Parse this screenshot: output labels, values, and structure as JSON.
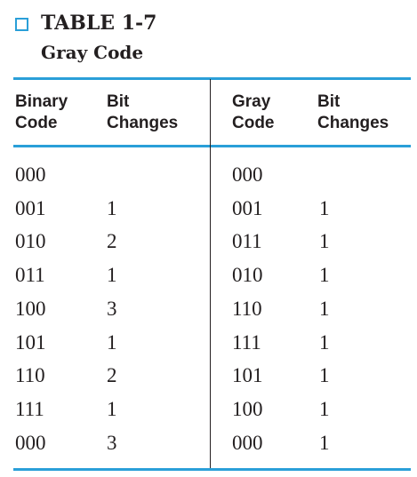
{
  "table": {
    "title": "TABLE 1-7",
    "subtitle": "Gray Code",
    "headers": [
      [
        "Binary",
        "Code"
      ],
      [
        "Bit",
        "Changes"
      ],
      [
        "Gray",
        "Code"
      ],
      [
        "Bit",
        "Changes"
      ]
    ],
    "rows": [
      [
        "000",
        "",
        "000",
        ""
      ],
      [
        "001",
        "1",
        "001",
        "1"
      ],
      [
        "010",
        "2",
        "011",
        "1"
      ],
      [
        "011",
        "1",
        "010",
        "1"
      ],
      [
        "100",
        "3",
        "110",
        "1"
      ],
      [
        "101",
        "1",
        "111",
        "1"
      ],
      [
        "110",
        "2",
        "101",
        "1"
      ],
      [
        "111",
        "1",
        "100",
        "1"
      ],
      [
        "000",
        "3",
        "000",
        "1"
      ]
    ],
    "accent_color": "#2a9fd8"
  }
}
